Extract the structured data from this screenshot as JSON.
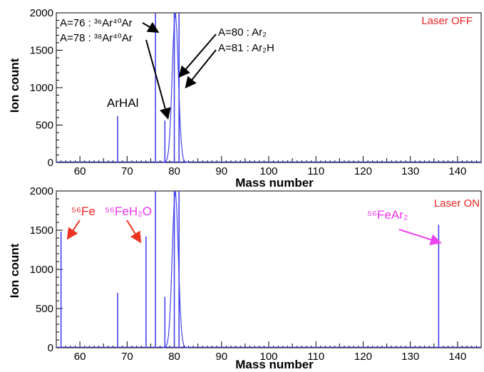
{
  "chart_data": [
    {
      "type": "line",
      "status_label": "Laser OFF",
      "xlabel": "Mass number",
      "ylabel": "Ion count",
      "xlim": [
        55,
        145
      ],
      "ylim": [
        0,
        2000
      ],
      "x_ticks": [
        "60",
        "70",
        "80",
        "90",
        "100",
        "110",
        "120",
        "130",
        "140"
      ],
      "y_ticks": [
        "0",
        "500",
        "1000",
        "1500",
        "2000"
      ],
      "grid": false,
      "peaks": [
        {
          "x": 68,
          "y": 620
        },
        {
          "x": 76,
          "y": 2000
        },
        {
          "x": 78,
          "y": 560
        },
        {
          "x": 80,
          "y": 2000
        },
        {
          "x": 81,
          "y": 2000
        }
      ],
      "annotations": {
        "a76": "A=76 : ³⁶Ar⁴⁰Ar",
        "a78": "A=78 : ³⁸Ar⁴⁰Ar",
        "a80": "A=80 : Ar₂",
        "a81": "A=81 : Ar₂H",
        "arhal": "ArHAl"
      },
      "colors": {
        "line": "#4444ee",
        "status": "#ee2222",
        "arrow": "#000000"
      }
    },
    {
      "type": "line",
      "status_label": "Laser ON",
      "xlabel": "Mass number",
      "ylabel": "Ion count",
      "xlim": [
        55,
        145
      ],
      "ylim": [
        0,
        2000
      ],
      "x_ticks": [
        "60",
        "70",
        "80",
        "90",
        "100",
        "110",
        "120",
        "130",
        "140"
      ],
      "y_ticks": [
        "0",
        "500",
        "1000",
        "1500",
        "2000"
      ],
      "grid": false,
      "peaks": [
        {
          "x": 56,
          "y": 1480
        },
        {
          "x": 68,
          "y": 700
        },
        {
          "x": 74,
          "y": 1420
        },
        {
          "x": 76,
          "y": 2000
        },
        {
          "x": 78,
          "y": 650
        },
        {
          "x": 80,
          "y": 2000
        },
        {
          "x": 81,
          "y": 2000
        },
        {
          "x": 136,
          "y": 1570
        }
      ],
      "annotations": {
        "fe": "⁵⁶Fe",
        "feh2o": "⁵⁶FeH₂O",
        "fear2": "⁵⁶FeAr₂"
      },
      "colors": {
        "line": "#4444ee",
        "status": "#ee2222",
        "fe": "#ee2222",
        "feh2o": "#ee33ee",
        "fear2": "#ee33ee",
        "arrow_red": "#ee3322",
        "arrow_magenta": "#ee44ee"
      }
    }
  ]
}
